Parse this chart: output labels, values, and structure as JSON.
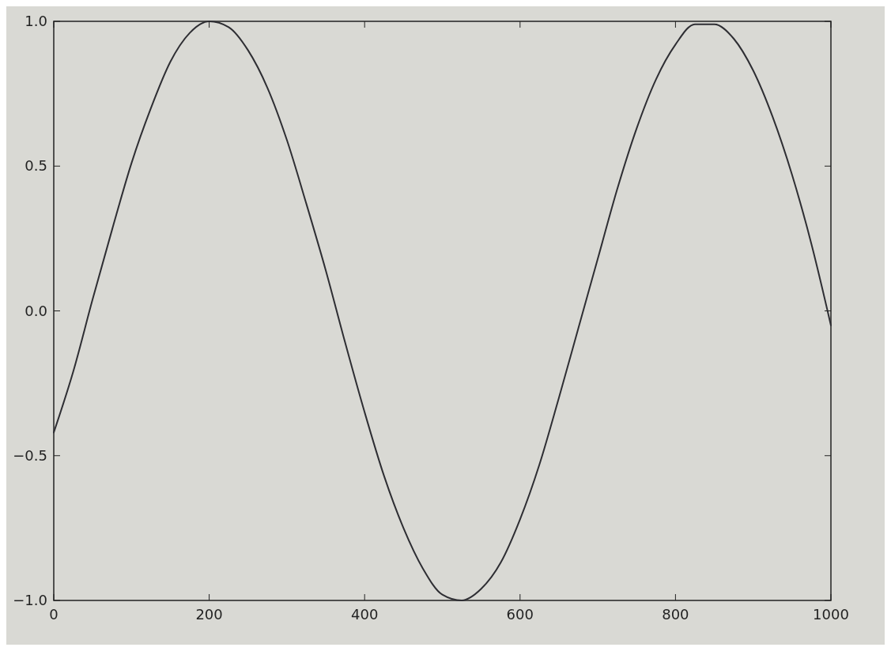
{
  "chart_data": {
    "type": "line",
    "x": [
      0,
      25,
      50,
      75,
      100,
      125,
      150,
      175,
      200,
      225,
      250,
      275,
      300,
      325,
      350,
      375,
      400,
      425,
      450,
      475,
      500,
      525,
      550,
      575,
      600,
      625,
      650,
      675,
      700,
      725,
      750,
      775,
      800,
      825,
      850,
      875,
      900,
      925,
      950,
      975,
      1000
    ],
    "series": [
      {
        "color": "#2e2e33",
        "values": [
          -0.42,
          -0.21,
          0.04,
          0.28,
          0.51,
          0.7,
          0.86,
          0.96,
          1.0,
          0.98,
          0.9,
          0.77,
          0.59,
          0.37,
          0.14,
          -0.11,
          -0.35,
          -0.57,
          -0.75,
          -0.89,
          -0.98,
          -1.0,
          -0.96,
          -0.87,
          -0.72,
          -0.53,
          -0.3,
          -0.06,
          0.18,
          0.42,
          0.63,
          0.8,
          0.92,
          0.99,
          0.99,
          0.94,
          0.83,
          0.67,
          0.47,
          0.23,
          -0.05
        ]
      }
    ],
    "xlim": [
      0,
      1000
    ],
    "xticks": [
      0,
      200,
      400,
      600,
      800,
      1000
    ],
    "ylim": [
      -1.0,
      1.0
    ],
    "yticks": [
      {
        "value": -1.0,
        "label": "−1.0"
      },
      {
        "value": -0.5,
        "label": "−0.5"
      },
      {
        "value": 0,
        "label": "0.0"
      },
      {
        "value": 0.5,
        "label": "0.5"
      },
      {
        "value": 1.0,
        "label": "1.0"
      }
    ],
    "marker": "none",
    "line_style": "solid"
  }
}
